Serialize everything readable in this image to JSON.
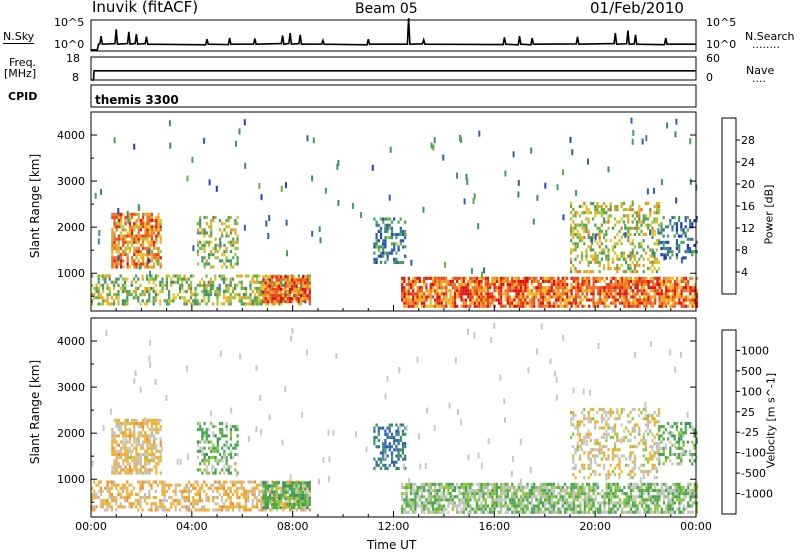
{
  "header": {
    "station": "Inuvik (fitACF)",
    "beam": "Beam 05",
    "date": "01/Feb/2010"
  },
  "labels": {
    "nsky": "N.Sky",
    "nsearch": "N.Search",
    "nsearch_dots": "........",
    "freq_top": "Freq.",
    "freq_unit": "[MHz]",
    "cpid": "CPID",
    "nave": "Nave",
    "nave_dots": "....",
    "program": "themis 3300",
    "pow_ylabel": "Slant Range [km]",
    "vel_ylabel": "Slant Range [km]",
    "xlabel": "Time UT"
  },
  "axes": {
    "noise_ticks": [
      "10^5",
      "10^0"
    ],
    "freq_ticks": [
      "18",
      "8"
    ],
    "nave_ticks": [
      "60",
      "0"
    ],
    "range_ticks": [
      "4000",
      "3000",
      "2000",
      "1000"
    ],
    "time_ticks": [
      "00:00",
      "04:00",
      "08:00",
      "12:00",
      "16:00",
      "20:00",
      "00:00"
    ]
  },
  "colorbars": {
    "power": {
      "label": "Power [dB]",
      "ticks": [
        "28",
        "24",
        "20",
        "16",
        "12",
        "8",
        "4"
      ],
      "colors": [
        "#1e2bd6",
        "#2040c8",
        "#2f5fb0",
        "#3b8a78",
        "#40a060",
        "#60b040",
        "#a6c43a",
        "#f0c020",
        "#f49a20",
        "#f07020",
        "#e84418",
        "#e01010"
      ]
    },
    "velocity": {
      "label": "Velocity [m s^-1]",
      "ticks": [
        "1000",
        "500",
        "100",
        "25",
        "-25",
        "-100",
        "-500",
        "-1000"
      ],
      "colors": [
        "#1e2bd6",
        "#2a5ec0",
        "#3a8c6e",
        "#45a84a",
        "#8cc43a",
        "#c8c8c8",
        "#c0c0c0",
        "#f0b030",
        "#f09020",
        "#f07020",
        "#e84418",
        "#e01010"
      ]
    }
  },
  "chart_data": [
    {
      "type": "line",
      "title": "Inuvik (fitACF) Beam 05 01/Feb/2010",
      "panel": "noise",
      "ylabel": "N.Sky",
      "x_range": [
        "00:00",
        "24:00"
      ],
      "ylim_log10": [
        0,
        5
      ],
      "baseline_log10": 1.1,
      "spikes": [
        {
          "t": 0.4,
          "h": 1.3
        },
        {
          "t": 1.0,
          "h": 2.4
        },
        {
          "t": 1.5,
          "h": 2.0
        },
        {
          "t": 1.8,
          "h": 1.6
        },
        {
          "t": 2.2,
          "h": 1.2
        },
        {
          "t": 4.6,
          "h": 0.8
        },
        {
          "t": 5.5,
          "h": 1.0
        },
        {
          "t": 6.5,
          "h": 0.9
        },
        {
          "t": 7.6,
          "h": 1.4
        },
        {
          "t": 7.9,
          "h": 1.8
        },
        {
          "t": 8.3,
          "h": 1.5
        },
        {
          "t": 9.2,
          "h": 0.6
        },
        {
          "t": 11.0,
          "h": 0.8
        },
        {
          "t": 12.6,
          "h": 4.2
        },
        {
          "t": 13.2,
          "h": 0.7
        },
        {
          "t": 16.4,
          "h": 1.1
        },
        {
          "t": 17.0,
          "h": 1.3
        },
        {
          "t": 17.5,
          "h": 1.0
        },
        {
          "t": 19.3,
          "h": 1.2
        },
        {
          "t": 20.8,
          "h": 1.8
        },
        {
          "t": 21.3,
          "h": 2.2
        },
        {
          "t": 21.6,
          "h": 1.5
        },
        {
          "t": 22.8,
          "h": 1.0
        }
      ]
    },
    {
      "type": "line",
      "panel": "frequency",
      "ylabel": "Freq. [MHz]",
      "ylim": [
        8,
        18
      ],
      "value": 12
    },
    {
      "type": "heatmap",
      "panel": "power",
      "ylabel": "Slant Range [km]",
      "xlabel": "Time UT",
      "x_range_hours": [
        0,
        24
      ],
      "ylim": [
        180,
        4500
      ],
      "units": "dB",
      "regions": [
        {
          "t0": 0.0,
          "t1": 8.7,
          "r0": 300,
          "r1": 950,
          "base": 16,
          "density": 0.55
        },
        {
          "t0": 6.8,
          "t1": 8.7,
          "r0": 350,
          "r1": 950,
          "base": 26,
          "density": 0.85
        },
        {
          "t0": 12.3,
          "t1": 24.0,
          "r0": 250,
          "r1": 900,
          "base": 26,
          "density": 0.8
        },
        {
          "t0": 0.8,
          "t1": 2.8,
          "r0": 1100,
          "r1": 2300,
          "base": 24,
          "density": 0.7
        },
        {
          "t0": 4.2,
          "t1": 5.8,
          "r0": 1100,
          "r1": 2200,
          "base": 16,
          "density": 0.45
        },
        {
          "t0": 11.2,
          "t1": 12.5,
          "r0": 1200,
          "r1": 2200,
          "base": 10,
          "density": 0.5
        },
        {
          "t0": 19.0,
          "t1": 22.5,
          "r0": 1000,
          "r1": 2500,
          "base": 18,
          "density": 0.4
        },
        {
          "t0": 22.5,
          "t1": 24.0,
          "r0": 1300,
          "r1": 2200,
          "base": 8,
          "density": 0.4
        }
      ]
    },
    {
      "type": "heatmap",
      "panel": "velocity",
      "ylabel": "Slant Range [km]",
      "xlabel": "Time UT",
      "x_range_hours": [
        0,
        24
      ],
      "ylim": [
        180,
        4500
      ],
      "units": "m s^-1",
      "regions": [
        {
          "t0": 0.0,
          "t1": 8.7,
          "r0": 300,
          "r1": 950,
          "base": -150,
          "density": 0.55
        },
        {
          "t0": 6.8,
          "t1": 8.7,
          "r0": 350,
          "r1": 950,
          "base": 150,
          "density": 0.8
        },
        {
          "t0": 12.3,
          "t1": 24.0,
          "r0": 250,
          "r1": 900,
          "base": 60,
          "density": 0.75
        },
        {
          "t0": 0.8,
          "t1": 2.8,
          "r0": 1100,
          "r1": 2300,
          "base": -120,
          "density": 0.7
        },
        {
          "t0": 4.2,
          "t1": 5.8,
          "r0": 1100,
          "r1": 2200,
          "base": 120,
          "density": 0.45
        },
        {
          "t0": 11.2,
          "t1": 12.5,
          "r0": 1200,
          "r1": 2200,
          "base": 500,
          "density": 0.5
        },
        {
          "t0": 19.0,
          "t1": 22.5,
          "r0": 1000,
          "r1": 2500,
          "base": -80,
          "density": 0.4
        },
        {
          "t0": 22.5,
          "t1": 24.0,
          "r0": 1300,
          "r1": 2200,
          "base": 120,
          "density": 0.4
        }
      ]
    }
  ]
}
